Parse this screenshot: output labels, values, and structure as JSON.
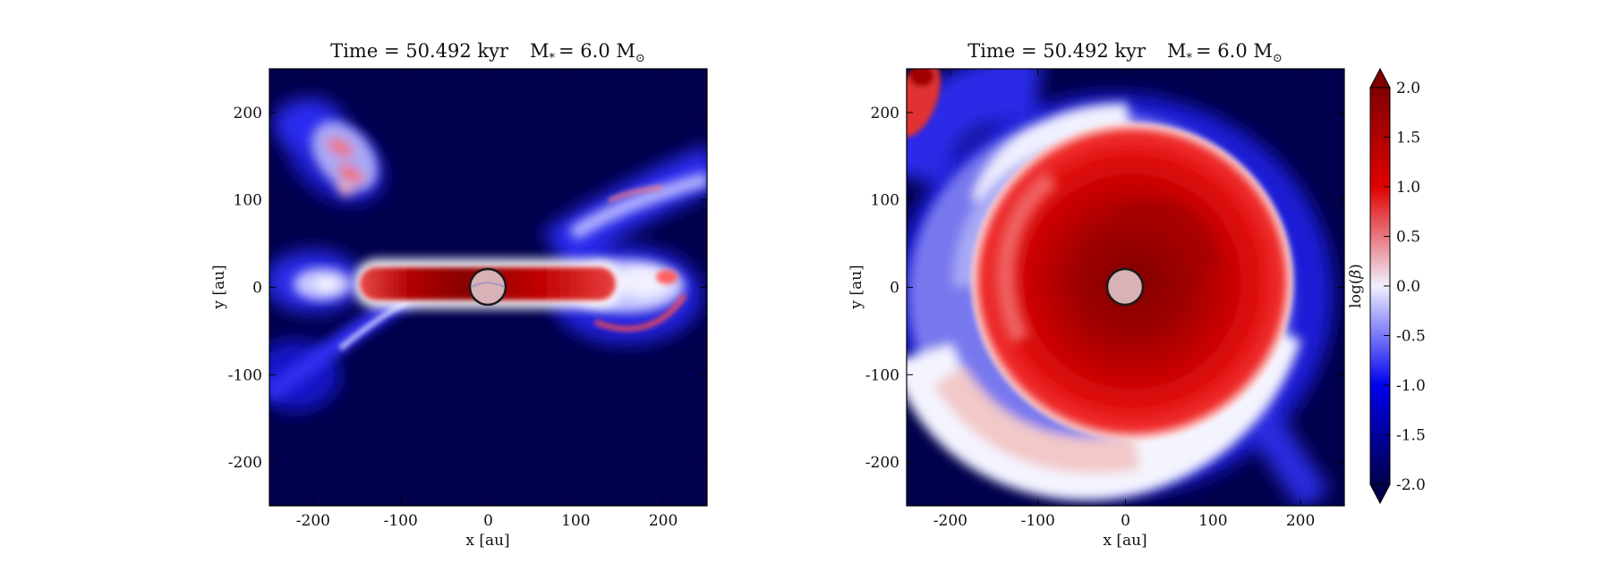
{
  "chart_data": [
    {
      "type": "heatmap",
      "title": "Time = 50.492 kyr    M$_*$ = 6.0 M$_\\odot$",
      "title_text": "Time = 50.492 kyr",
      "title_mass": "M",
      "title_mass_sub": "*",
      "title_mass_value": "= 6.0 M",
      "title_mass_unit_sub": "⊙",
      "xlabel": "x [au]",
      "ylabel": "y [au]",
      "xlim": [
        -250,
        250
      ],
      "ylim": [
        -250,
        250
      ],
      "x_ticks": [
        -200,
        -100,
        0,
        100,
        200
      ],
      "y_ticks": [
        -200,
        -100,
        0,
        100,
        200
      ],
      "x_tick_labels": [
        "-200",
        "-100",
        "0",
        "100",
        "200"
      ],
      "y_tick_labels": [
        "-200",
        "-100",
        "0",
        "100",
        "200"
      ],
      "sink_particle": {
        "x": 0,
        "y": 0,
        "radius": 20
      },
      "field": "log(beta)",
      "features": [
        {
          "shape": "edge-on disk",
          "x_range": [
            -140,
            130
          ],
          "y_range": [
            -10,
            15
          ],
          "value": 2.0
        },
        {
          "shape": "outflow lobes",
          "value_range": [
            -2.0,
            1.0
          ]
        }
      ]
    },
    {
      "type": "heatmap",
      "title": "Time = 50.492 kyr    M$_*$ = 6.0 M$_\\odot$",
      "title_text": "Time = 50.492 kyr",
      "title_mass": "M",
      "title_mass_sub": "*",
      "title_mass_value": "= 6.0 M",
      "title_mass_unit_sub": "⊙",
      "xlabel": "x [au]",
      "ylabel": "y [au]",
      "xlim": [
        -250,
        250
      ],
      "ylim": [
        -250,
        250
      ],
      "x_ticks": [
        -200,
        -100,
        0,
        100,
        200
      ],
      "y_ticks": [
        -200,
        -100,
        0,
        100,
        200
      ],
      "x_tick_labels": [
        "-200",
        "-100",
        "0",
        "100",
        "200"
      ],
      "y_tick_labels": [
        "-200",
        "-100",
        "0",
        "100",
        "200"
      ],
      "sink_particle": {
        "x": 0,
        "y": 0,
        "radius": 20
      },
      "field": "log(beta)",
      "features": [
        {
          "shape": "face-on disk",
          "center": [
            0,
            0
          ],
          "radius": 180,
          "value_range": [
            1.0,
            2.0
          ]
        },
        {
          "shape": "spiral arms",
          "value_range": [
            -1.0,
            0.5
          ]
        }
      ]
    }
  ],
  "colorbar": {
    "label": "log(β)",
    "label_prefix": "log(",
    "label_symbol": "β",
    "label_suffix": ")",
    "cmap": "seismic",
    "range": [
      -2.0,
      2.0
    ],
    "extend": "both",
    "ticks": [
      -2.0,
      -1.5,
      -1.0,
      -0.5,
      0.0,
      0.5,
      1.0,
      1.5,
      2.0
    ],
    "tick_labels": [
      "-2.0",
      "-1.5",
      "-1.0",
      "-0.5",
      "0.0",
      "0.5",
      "1.0",
      "1.5",
      "2.0"
    ]
  },
  "colors": {
    "cmap_stops": [
      "#00004c",
      "#0000ee",
      "#f0f0ff",
      "#e00000",
      "#800000"
    ],
    "background_low": "#00004c",
    "sink_fill": "#d8b2b6",
    "sink_stroke": "#1a1a1a"
  }
}
